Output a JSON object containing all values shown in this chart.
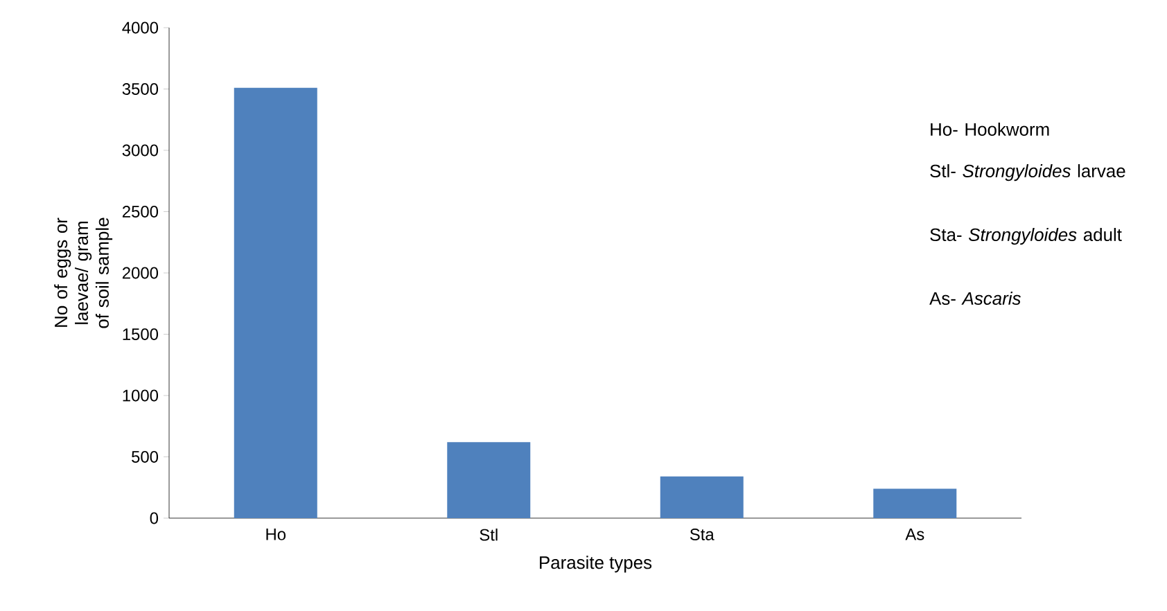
{
  "chart_data": {
    "type": "bar",
    "xlabel": "Parasite types",
    "ylabel": "No of eggs or laevae/ gram of soil sample",
    "categories": [
      "Ho",
      "Stl",
      "Sta",
      "As"
    ],
    "values": [
      3510,
      620,
      340,
      240
    ],
    "color": "#4f81bd",
    "ylim": [
      0,
      4000
    ],
    "yticks": [
      0,
      500,
      1000,
      1500,
      2000,
      2500,
      3000,
      3500,
      4000
    ],
    "grid": false,
    "annotations": [
      "Ho- Hookworm",
      "Stl- *Strongyloides* larvae",
      "Sta- *Strongyloides* adult",
      "As-  *Ascaris*"
    ]
  }
}
